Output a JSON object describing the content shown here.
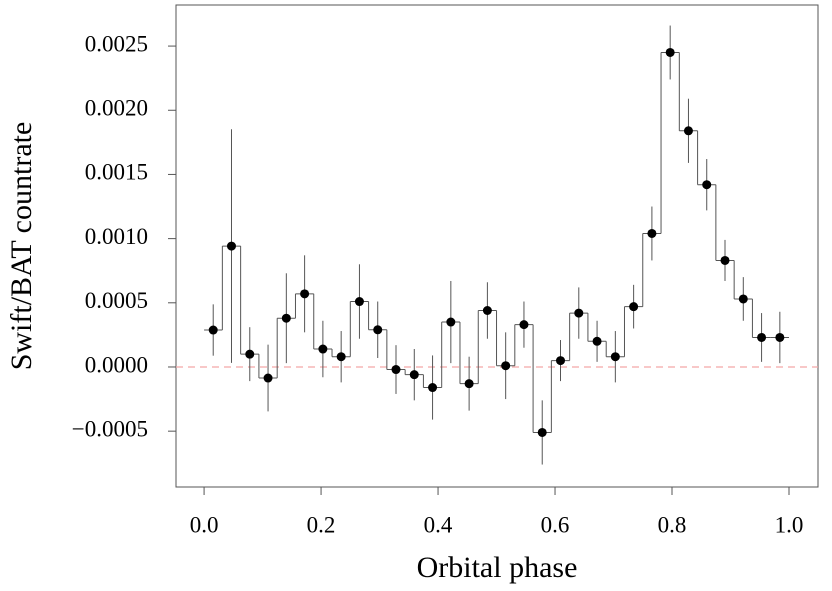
{
  "chart_data": {
    "type": "step-errorbar",
    "xlabel": "Orbital phase",
    "ylabel": "Swift/BAT countrate",
    "xlim": [
      -0.048,
      1.0496
    ],
    "ylim": [
      -0.000935,
      0.00282
    ],
    "xticks": [
      {
        "value": 0,
        "label": "0.0"
      },
      0.2,
      0.4,
      0.6,
      0.8,
      {
        "value": 1,
        "label": "1.0"
      }
    ],
    "yticks": [
      {
        "value": -0.0005,
        "label": "−0.0005"
      },
      {
        "value": 0,
        "label": "0.0000"
      },
      0.0005,
      {
        "value": 0.001,
        "label": "0.0010"
      },
      0.0015,
      {
        "value": 0.002,
        "label": "0.0020"
      },
      0.0025
    ],
    "reference_line": {
      "y": 0,
      "color": "#f4a8a8",
      "dashed": true
    },
    "series": [
      {
        "color": "#000000",
        "x": [
          0.015625,
          0.046875,
          0.078125,
          0.109375,
          0.140625,
          0.171875,
          0.203125,
          0.234375,
          0.265625,
          0.296875,
          0.328125,
          0.359375,
          0.390625,
          0.421875,
          0.453125,
          0.484375,
          0.515625,
          0.546875,
          0.578125,
          0.609375,
          0.640625,
          0.671875,
          0.703125,
          0.734375,
          0.765625,
          0.796875,
          0.828125,
          0.859375,
          0.890625,
          0.921875,
          0.953125,
          0.984375
        ],
        "values": [
          0.000288,
          0.000942,
          0.0001,
          -8.6e-05,
          0.00038,
          0.00057,
          0.00014,
          8e-05,
          0.00051,
          0.00029,
          -2e-05,
          -6e-05,
          -0.00016,
          0.00035,
          -0.00013,
          0.00044,
          1e-05,
          0.00033,
          -0.00051,
          5e-05,
          0.00042,
          0.0002,
          8e-05,
          0.00047,
          0.00104,
          0.00245,
          0.00184,
          0.00142,
          0.00083,
          0.00053,
          0.00023,
          0.00023
        ],
        "errors": [
          0.0002,
          0.00091,
          0.00021,
          0.00026,
          0.00035,
          0.0003,
          0.00022,
          0.0002,
          0.00029,
          0.00022,
          0.00019,
          0.0002,
          0.00025,
          0.00032,
          0.00021,
          0.00022,
          0.00026,
          0.00018,
          0.00025,
          0.00016,
          0.0002,
          0.00016,
          0.0002,
          0.00017,
          0.00021,
          0.00021,
          0.00025,
          0.0002,
          0.00016,
          0.00017,
          0.00019,
          0.0002
        ]
      }
    ]
  }
}
